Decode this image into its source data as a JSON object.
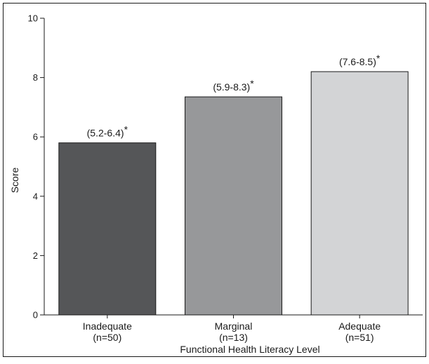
{
  "chart_data": {
    "type": "bar",
    "title": "",
    "xlabel": "Functional Health Literacy Level",
    "ylabel": "Score",
    "ylim": [
      0,
      10
    ],
    "yticks": [
      0,
      2,
      4,
      6,
      8,
      10
    ],
    "grid": false,
    "categories": [
      "Inadequate",
      "Marginal",
      "Adequate"
    ],
    "category_counts": [
      "(n=50)",
      "(n=13)",
      "(n=51)"
    ],
    "values": [
      5.8,
      7.35,
      8.2
    ],
    "value_labels": [
      "(5.2-6.4)",
      "(5.9-8.3)",
      "(7.6-8.5)"
    ],
    "significance_marker": "*",
    "colors": [
      "#555658",
      "#97989a",
      "#d3d4d6"
    ]
  }
}
